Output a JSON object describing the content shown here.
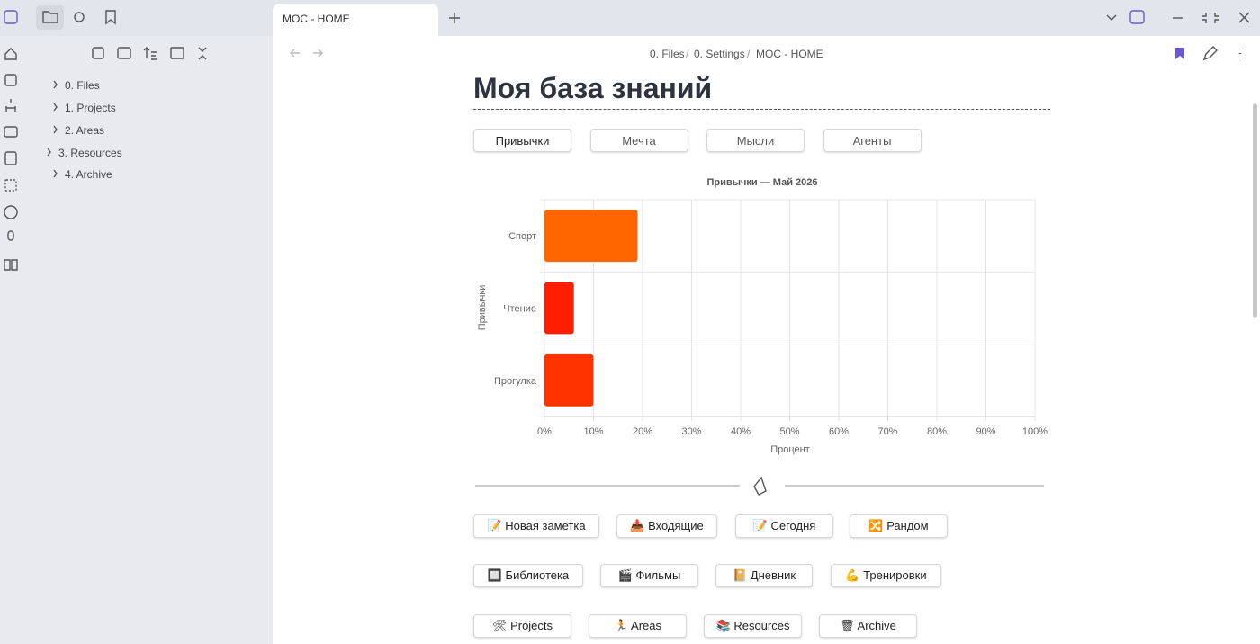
{
  "tab": {
    "title": "MOC - HOME"
  },
  "breadcrumb": {
    "parts": [
      "0. Files",
      "0. Settings",
      "MOC - HOME"
    ],
    "separator": "/"
  },
  "sidebar": {
    "tree": [
      "0. Files",
      "1. Projects",
      "2. Areas",
      "3. Resources",
      "4. Archive"
    ]
  },
  "note": {
    "title": "Моя база знаний",
    "tabs": [
      "Привычки",
      "Мечта",
      "Мысли",
      "Агенты"
    ],
    "button_rows": [
      [
        "📝 Новая заметка",
        "📥 Входящие",
        "📝 Сегодня",
        "🔀 Рандом"
      ],
      [
        "🔲 Библиотека",
        "🎬 Фильмы",
        "📔 Дневник",
        "💪 Тренировки"
      ],
      [
        "🛠 Projects",
        "🏃 Areas",
        "📚 Resources",
        "🗑 Archive"
      ]
    ]
  },
  "chart_data": {
    "type": "barh",
    "title": "Привычки — Май 2026",
    "xlabel": "Процент",
    "ylabel": "Привычки",
    "categories": [
      "Спорт",
      "Чтение",
      "Прогулка"
    ],
    "values": [
      19,
      6,
      10
    ],
    "colors": [
      "#ff6600",
      "#ff1f00",
      "#ff3300"
    ],
    "xlim": [
      0,
      100
    ],
    "xticks": [
      {
        "value": 0,
        "label": "0%"
      },
      {
        "value": 10,
        "label": "10%"
      },
      {
        "value": 20,
        "label": "20%"
      },
      {
        "value": 30,
        "label": "30%"
      },
      {
        "value": 40,
        "label": "40%"
      },
      {
        "value": 50,
        "label": "50%"
      },
      {
        "value": 60,
        "label": "60%"
      },
      {
        "value": 70,
        "label": "70%"
      },
      {
        "value": 80,
        "label": "80%"
      },
      {
        "value": 90,
        "label": "90%"
      },
      {
        "value": 100,
        "label": "100%"
      }
    ],
    "grid": true
  }
}
